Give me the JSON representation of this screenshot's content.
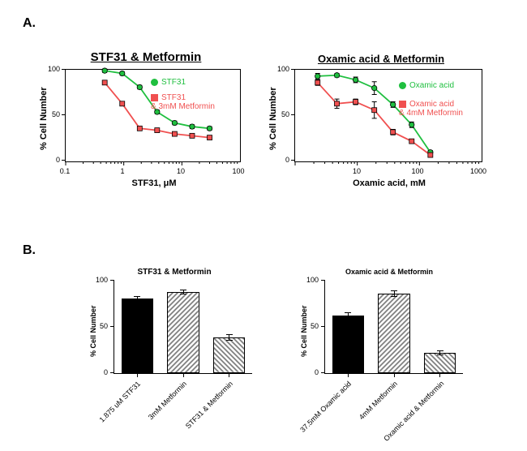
{
  "panelA": {
    "label": "A."
  },
  "panelB": {
    "label": "B."
  },
  "chartA1": {
    "type": "line",
    "title": "STF31 & Metformin",
    "title_fontsize": 15,
    "xlabel": "STF31, μM",
    "ylabel": "% Cell Number",
    "xlim": [
      0.1,
      100
    ],
    "xscale": "log",
    "xticks": [
      0.1,
      1,
      10,
      100
    ],
    "xticklabels": [
      "0.1",
      "1",
      "10",
      "100"
    ],
    "ylim": [
      0,
      100
    ],
    "yticks": [
      0,
      50,
      100
    ],
    "yticklabels": [
      "0",
      "50",
      "100"
    ],
    "series": [
      {
        "label": "STF31",
        "color": "#1fbf3f",
        "marker": "circle",
        "x": [
          0.47,
          0.94,
          1.88,
          3.75,
          7.5,
          15,
          30
        ],
        "y": [
          99,
          96,
          81,
          54,
          42,
          38,
          36
        ],
        "yerr": [
          2,
          2,
          2,
          2,
          2,
          2,
          2
        ]
      },
      {
        "label": "STF31 & 3mM Metformin",
        "color": "#f05050",
        "marker": "square",
        "x": [
          0.47,
          0.94,
          1.88,
          3.75,
          7.5,
          15,
          30
        ],
        "y": [
          86,
          63,
          36,
          34,
          30,
          28,
          26
        ],
        "yerr": [
          2,
          2,
          2,
          2,
          2,
          2,
          2
        ]
      }
    ],
    "legend": [
      {
        "label": "STF31",
        "color": "#1fbf3f"
      },
      {
        "label": "STF31\n& 3mM Metformin",
        "color": "#f05050"
      }
    ]
  },
  "chartA2": {
    "type": "line",
    "title": "Oxamic acid & Metformin",
    "title_fontsize": 13,
    "xlabel": "Oxamic acid, mM",
    "ylabel": "% Cell Number",
    "xlim": [
      1,
      1000
    ],
    "xscale": "log",
    "xticks": [
      10,
      100,
      1000
    ],
    "xticklabels": [
      "10",
      "100",
      "1000"
    ],
    "extra_xticks": [
      1
    ],
    "ylim": [
      0,
      100
    ],
    "yticks": [
      0,
      50,
      100
    ],
    "yticklabels": [
      "0",
      "50",
      "100"
    ],
    "series": [
      {
        "label": "Oxamic acid",
        "color": "#1fbf3f",
        "marker": "circle",
        "x": [
          2.3,
          4.7,
          9.4,
          18.8,
          37.5,
          75,
          150
        ],
        "y": [
          93,
          94,
          89,
          80,
          62,
          40,
          10
        ],
        "yerr": [
          3,
          2,
          3,
          7,
          3,
          3,
          2
        ]
      },
      {
        "label": "Oxamic acid & 4mM Metformin",
        "color": "#f05050",
        "marker": "square",
        "x": [
          2.3,
          4.7,
          9.4,
          18.8,
          37.5,
          75,
          150
        ],
        "y": [
          86,
          63,
          65,
          56,
          32,
          22,
          7
        ],
        "yerr": [
          3,
          5,
          3,
          9,
          3,
          2,
          2
        ]
      }
    ],
    "legend": [
      {
        "label": "Oxamic acid",
        "color": "#1fbf3f"
      },
      {
        "label": "Oxamic acid\n& 4mM Metformin",
        "color": "#f05050"
      }
    ]
  },
  "chartB1": {
    "type": "bar",
    "title": "STF31 & Metformin",
    "title_fontsize": 10,
    "ylabel": "% Cell Number",
    "ylim": [
      0,
      100
    ],
    "yticks": [
      0,
      50,
      100
    ],
    "yticklabels": [
      "0",
      "50",
      "100"
    ],
    "bars": [
      {
        "label": "1.875 uM STF31",
        "value": 80,
        "err": 2,
        "fill": "solid",
        "color": "#000000"
      },
      {
        "label": "3mM Metformin",
        "value": 87,
        "err": 2,
        "fill": "hatch0",
        "color": "#808080"
      },
      {
        "label": "STF31 & Metformin",
        "value": 38,
        "err": 3,
        "fill": "hatch1",
        "color": "#808080"
      }
    ]
  },
  "chartB2": {
    "type": "bar",
    "title": "Oxamic acid & Metformin",
    "title_fontsize": 9,
    "ylabel": "% Cell Number",
    "ylim": [
      0,
      100
    ],
    "yticks": [
      0,
      50,
      100
    ],
    "yticklabels": [
      "0",
      "50",
      "100"
    ],
    "bars": [
      {
        "label": "37.5mM Oxamic acid",
        "value": 62,
        "err": 3,
        "fill": "solid",
        "color": "#000000"
      },
      {
        "label": "4mM Metformin",
        "value": 85,
        "err": 3,
        "fill": "hatch0",
        "color": "#808080"
      },
      {
        "label": "Oxamic acid & Metformin",
        "value": 22,
        "err": 2,
        "fill": "hatch1",
        "color": "#808080"
      }
    ]
  },
  "colors": {
    "green": "#1fbf3f",
    "red": "#f05050",
    "black": "#000000",
    "hatch": "#808080"
  }
}
